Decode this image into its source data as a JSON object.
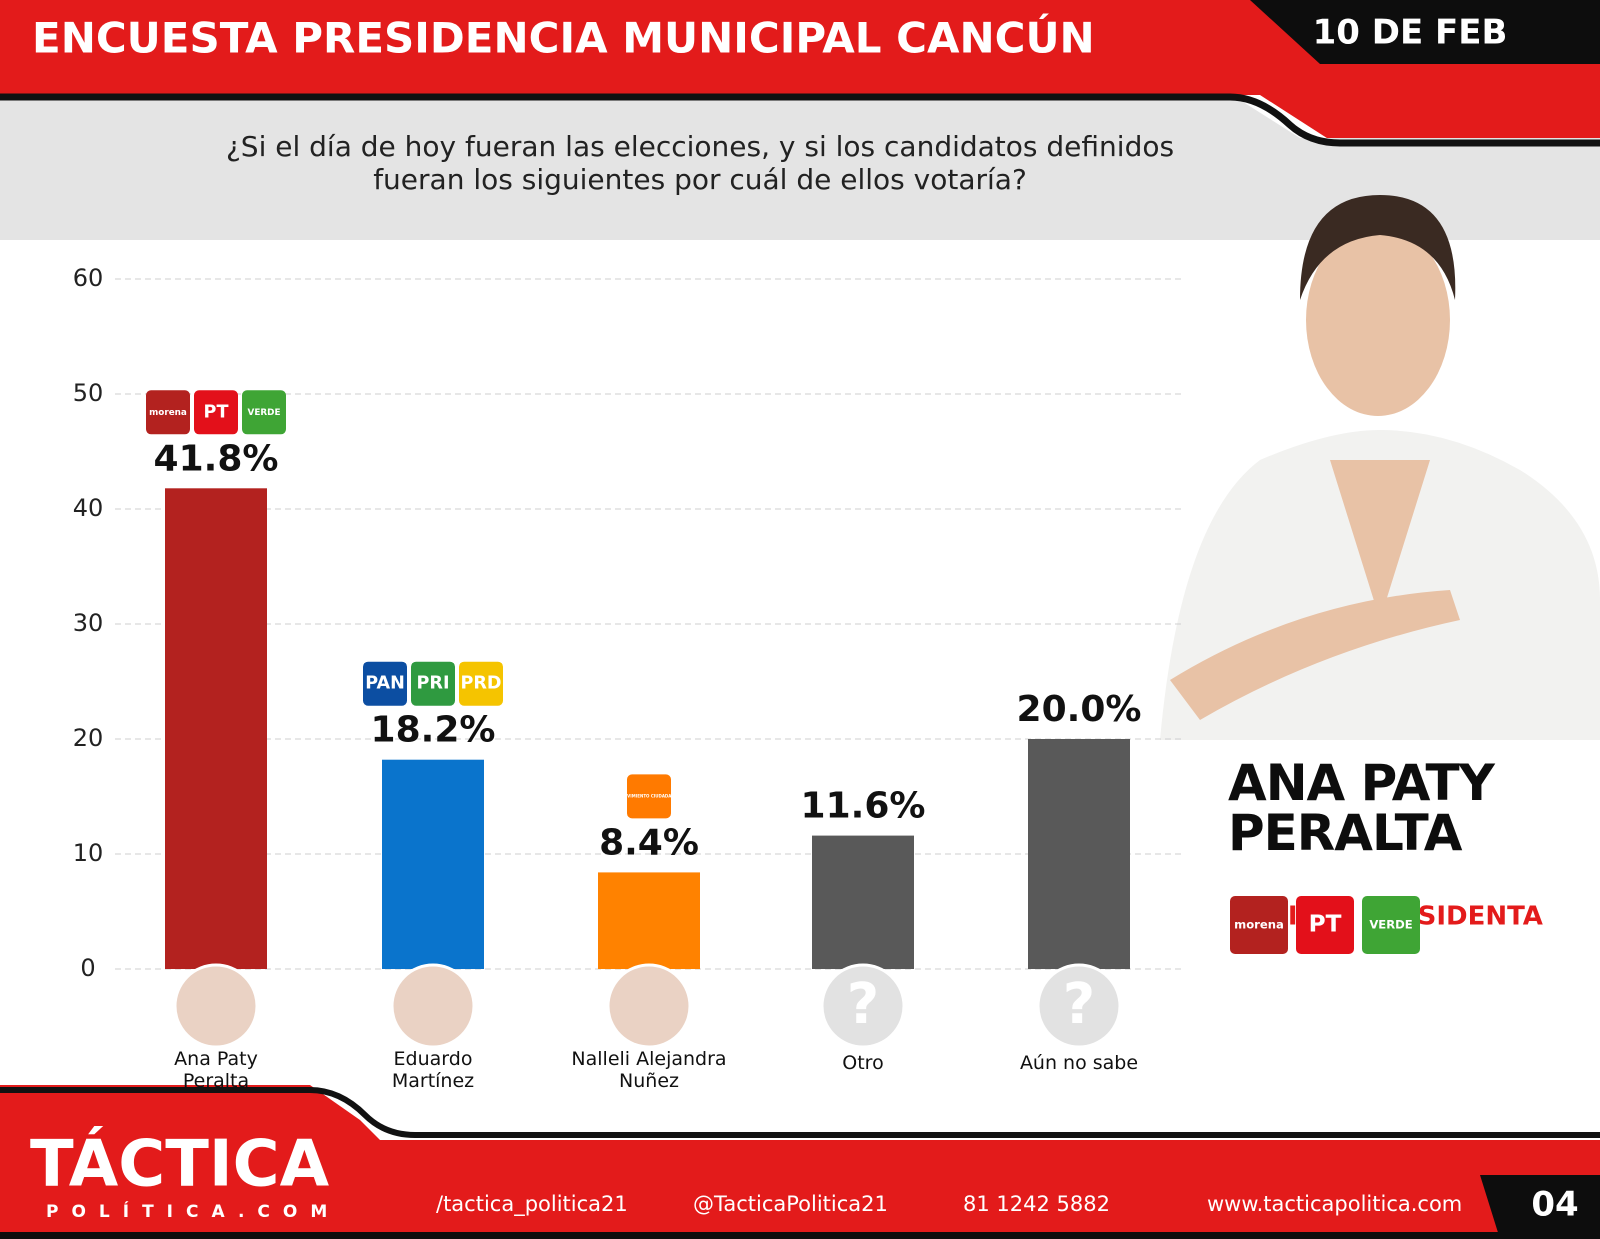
{
  "header": {
    "title": "ENCUESTA PRESIDENCIA MUNICIPAL CANCÚN",
    "date": "10 DE FEB"
  },
  "question": "¿Si el día de hoy fueran las elecciones, y si los candidatos definidos\nfueran los siguientes por cuál de ellos votaría?",
  "chart_data": {
    "type": "bar",
    "categories": [
      "Ana Paty\nPeralta",
      "Eduardo\nMartínez",
      "Nalleli Alejandra\nNuñez",
      "Otro",
      "Aún no sabe"
    ],
    "values": [
      41.8,
      18.2,
      8.4,
      11.6,
      20.0
    ],
    "value_labels": [
      "41.8%",
      "18.2%",
      "8.4%",
      "11.6%",
      "20.0%"
    ],
    "colors": [
      "#b3221f",
      "#0a74cc",
      "#ff8200",
      "#595959",
      "#595959"
    ],
    "ylim": [
      0,
      60
    ],
    "yticks": [
      0,
      10,
      20,
      30,
      40,
      50,
      60
    ],
    "grid": true,
    "bar_logos": [
      [
        {
          "label": "morena",
          "color": "#b3221f"
        },
        {
          "label": "PT",
          "color": "#e3101a"
        },
        {
          "label": "VERDE",
          "color": "#3fa535"
        }
      ],
      [
        {
          "label": "PAN",
          "color": "#0c4ea2"
        },
        {
          "label": "PRI",
          "color": "#2f9a40"
        },
        {
          "label": "PRD",
          "color": "#f5c400"
        }
      ],
      [
        {
          "label": "MOVIMIENTO CIUDADANO",
          "color": "#ff7a00"
        }
      ],
      [],
      []
    ],
    "unknown_marks": [
      null,
      null,
      null,
      "?",
      "?"
    ]
  },
  "candidate": {
    "name": "ANA PATY\nPERALTA",
    "role": "POSIBLE PRESIDENTA",
    "logos": [
      {
        "label": "morena",
        "color": "#b3221f"
      },
      {
        "label": "PT",
        "color": "#e3101a"
      },
      {
        "label": "VERDE",
        "color": "#3fa535"
      }
    ]
  },
  "footer": {
    "brand": "TÁCTICA",
    "brand_sub": "POLÍTICA.COM",
    "facebook": "/tactica_politica21",
    "instagram": "@TacticaPolitica21",
    "whatsapp": "81 1242 5882",
    "web": "www.tacticapolitica.com",
    "page": "04"
  }
}
